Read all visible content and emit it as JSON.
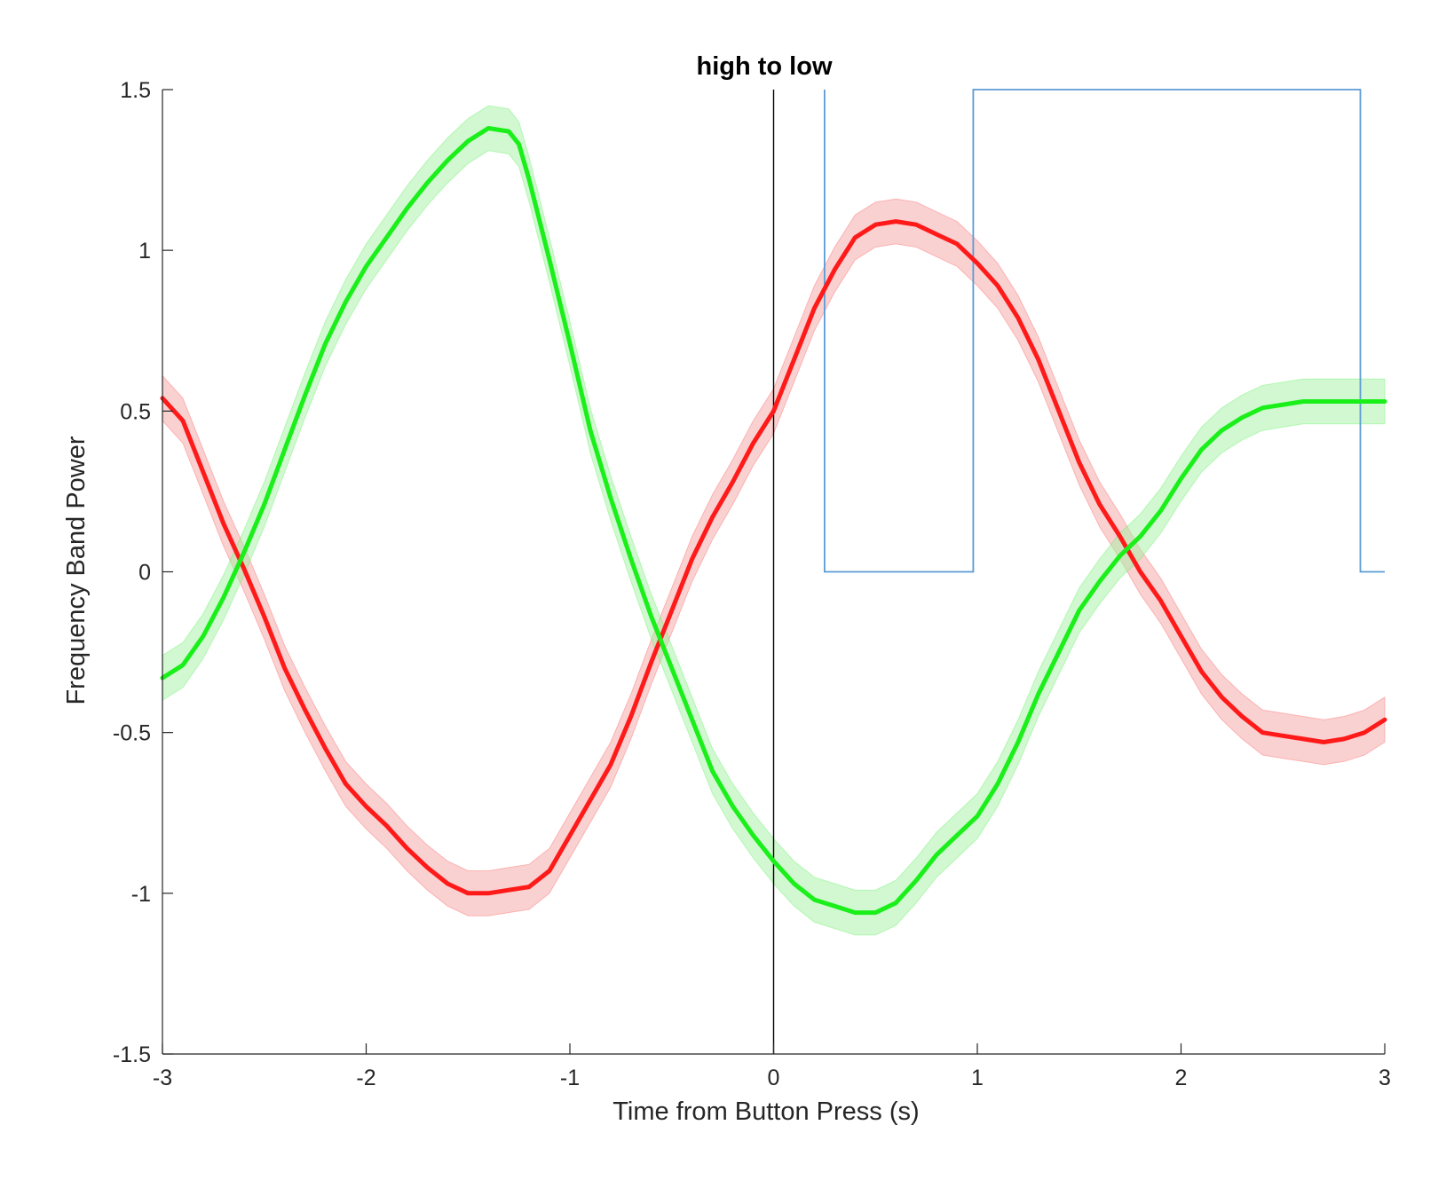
{
  "chart_data": {
    "type": "line",
    "title": "high to low",
    "xlabel": "Time from Button Press (s)",
    "ylabel": "Frequency Band Power",
    "xlim": [
      -3,
      3
    ],
    "ylim": [
      -1.5,
      1.5
    ],
    "xticks": [
      -3,
      -2,
      -1,
      0,
      1,
      2,
      3
    ],
    "yticks": [
      -1.5,
      -1,
      -0.5,
      0,
      0.5,
      1,
      1.5
    ],
    "xtick_labels": [
      "-3",
      "-2",
      "-1",
      "0",
      "1",
      "2",
      "3"
    ],
    "ytick_labels": [
      "-1.5",
      "-1",
      "-0.5",
      "0",
      "0.5",
      "1",
      "1.5"
    ],
    "grid": false,
    "legend": false,
    "vertical_reference_line": {
      "x": 0,
      "color": "#000000"
    },
    "step_signal": {
      "color": "#5b9bd5",
      "points": [
        [
          0.25,
          1.5
        ],
        [
          0.25,
          0
        ],
        [
          0.98,
          0
        ],
        [
          0.98,
          1.5
        ],
        [
          2.88,
          1.5
        ],
        [
          2.88,
          0
        ],
        [
          3.0,
          0
        ]
      ]
    },
    "series": [
      {
        "color": "#ff1a1a",
        "band_color": "#f5a3a3",
        "x": [
          -3.0,
          -2.9,
          -2.8,
          -2.7,
          -2.6,
          -2.5,
          -2.4,
          -2.3,
          -2.2,
          -2.1,
          -2.0,
          -1.9,
          -1.8,
          -1.7,
          -1.6,
          -1.5,
          -1.4,
          -1.3,
          -1.2,
          -1.1,
          -1.0,
          -0.9,
          -0.8,
          -0.7,
          -0.6,
          -0.5,
          -0.4,
          -0.3,
          -0.2,
          -0.1,
          0.0,
          0.1,
          0.2,
          0.3,
          0.4,
          0.5,
          0.6,
          0.7,
          0.8,
          0.9,
          1.0,
          1.1,
          1.2,
          1.3,
          1.4,
          1.5,
          1.6,
          1.7,
          1.8,
          1.9,
          2.0,
          2.1,
          2.2,
          2.3,
          2.4,
          2.5,
          2.6,
          2.7,
          2.8,
          2.9,
          3.0
        ],
        "y": [
          0.54,
          0.47,
          0.31,
          0.15,
          0.01,
          -0.14,
          -0.3,
          -0.43,
          -0.55,
          -0.66,
          -0.73,
          -0.79,
          -0.86,
          -0.92,
          -0.97,
          -1.0,
          -1.0,
          -0.99,
          -0.98,
          -0.93,
          -0.82,
          -0.71,
          -0.6,
          -0.45,
          -0.28,
          -0.12,
          0.04,
          0.17,
          0.28,
          0.4,
          0.5,
          0.66,
          0.82,
          0.94,
          1.04,
          1.08,
          1.09,
          1.08,
          1.05,
          1.02,
          0.96,
          0.89,
          0.79,
          0.66,
          0.5,
          0.34,
          0.21,
          0.11,
          0.0,
          -0.09,
          -0.2,
          -0.31,
          -0.39,
          -0.45,
          -0.5,
          -0.51,
          -0.52,
          -0.53,
          -0.52,
          -0.5,
          -0.46
        ],
        "err": 0.07
      },
      {
        "color": "#1aef1a",
        "band_color": "#a3f2a3",
        "x": [
          -3.0,
          -2.9,
          -2.8,
          -2.7,
          -2.6,
          -2.5,
          -2.4,
          -2.3,
          -2.2,
          -2.1,
          -2.0,
          -1.9,
          -1.8,
          -1.7,
          -1.6,
          -1.5,
          -1.4,
          -1.3,
          -1.25,
          -1.2,
          -1.1,
          -1.0,
          -0.9,
          -0.8,
          -0.7,
          -0.6,
          -0.5,
          -0.4,
          -0.3,
          -0.2,
          -0.1,
          0.0,
          0.1,
          0.2,
          0.3,
          0.4,
          0.5,
          0.6,
          0.7,
          0.8,
          0.9,
          1.0,
          1.1,
          1.2,
          1.3,
          1.4,
          1.5,
          1.6,
          1.7,
          1.8,
          1.9,
          2.0,
          2.1,
          2.2,
          2.3,
          2.4,
          2.5,
          2.6,
          2.7,
          2.8,
          2.9,
          3.0
        ],
        "y": [
          -0.33,
          -0.29,
          -0.2,
          -0.08,
          0.06,
          0.21,
          0.38,
          0.55,
          0.71,
          0.84,
          0.95,
          1.04,
          1.13,
          1.21,
          1.28,
          1.34,
          1.38,
          1.37,
          1.33,
          1.22,
          0.97,
          0.71,
          0.44,
          0.23,
          0.04,
          -0.14,
          -0.3,
          -0.46,
          -0.62,
          -0.73,
          -0.82,
          -0.9,
          -0.97,
          -1.02,
          -1.04,
          -1.06,
          -1.06,
          -1.03,
          -0.96,
          -0.88,
          -0.82,
          -0.76,
          -0.66,
          -0.53,
          -0.38,
          -0.25,
          -0.12,
          -0.03,
          0.05,
          0.11,
          0.19,
          0.29,
          0.38,
          0.44,
          0.48,
          0.51,
          0.52,
          0.53,
          0.53,
          0.53,
          0.53,
          0.53
        ],
        "err": 0.07
      }
    ]
  }
}
